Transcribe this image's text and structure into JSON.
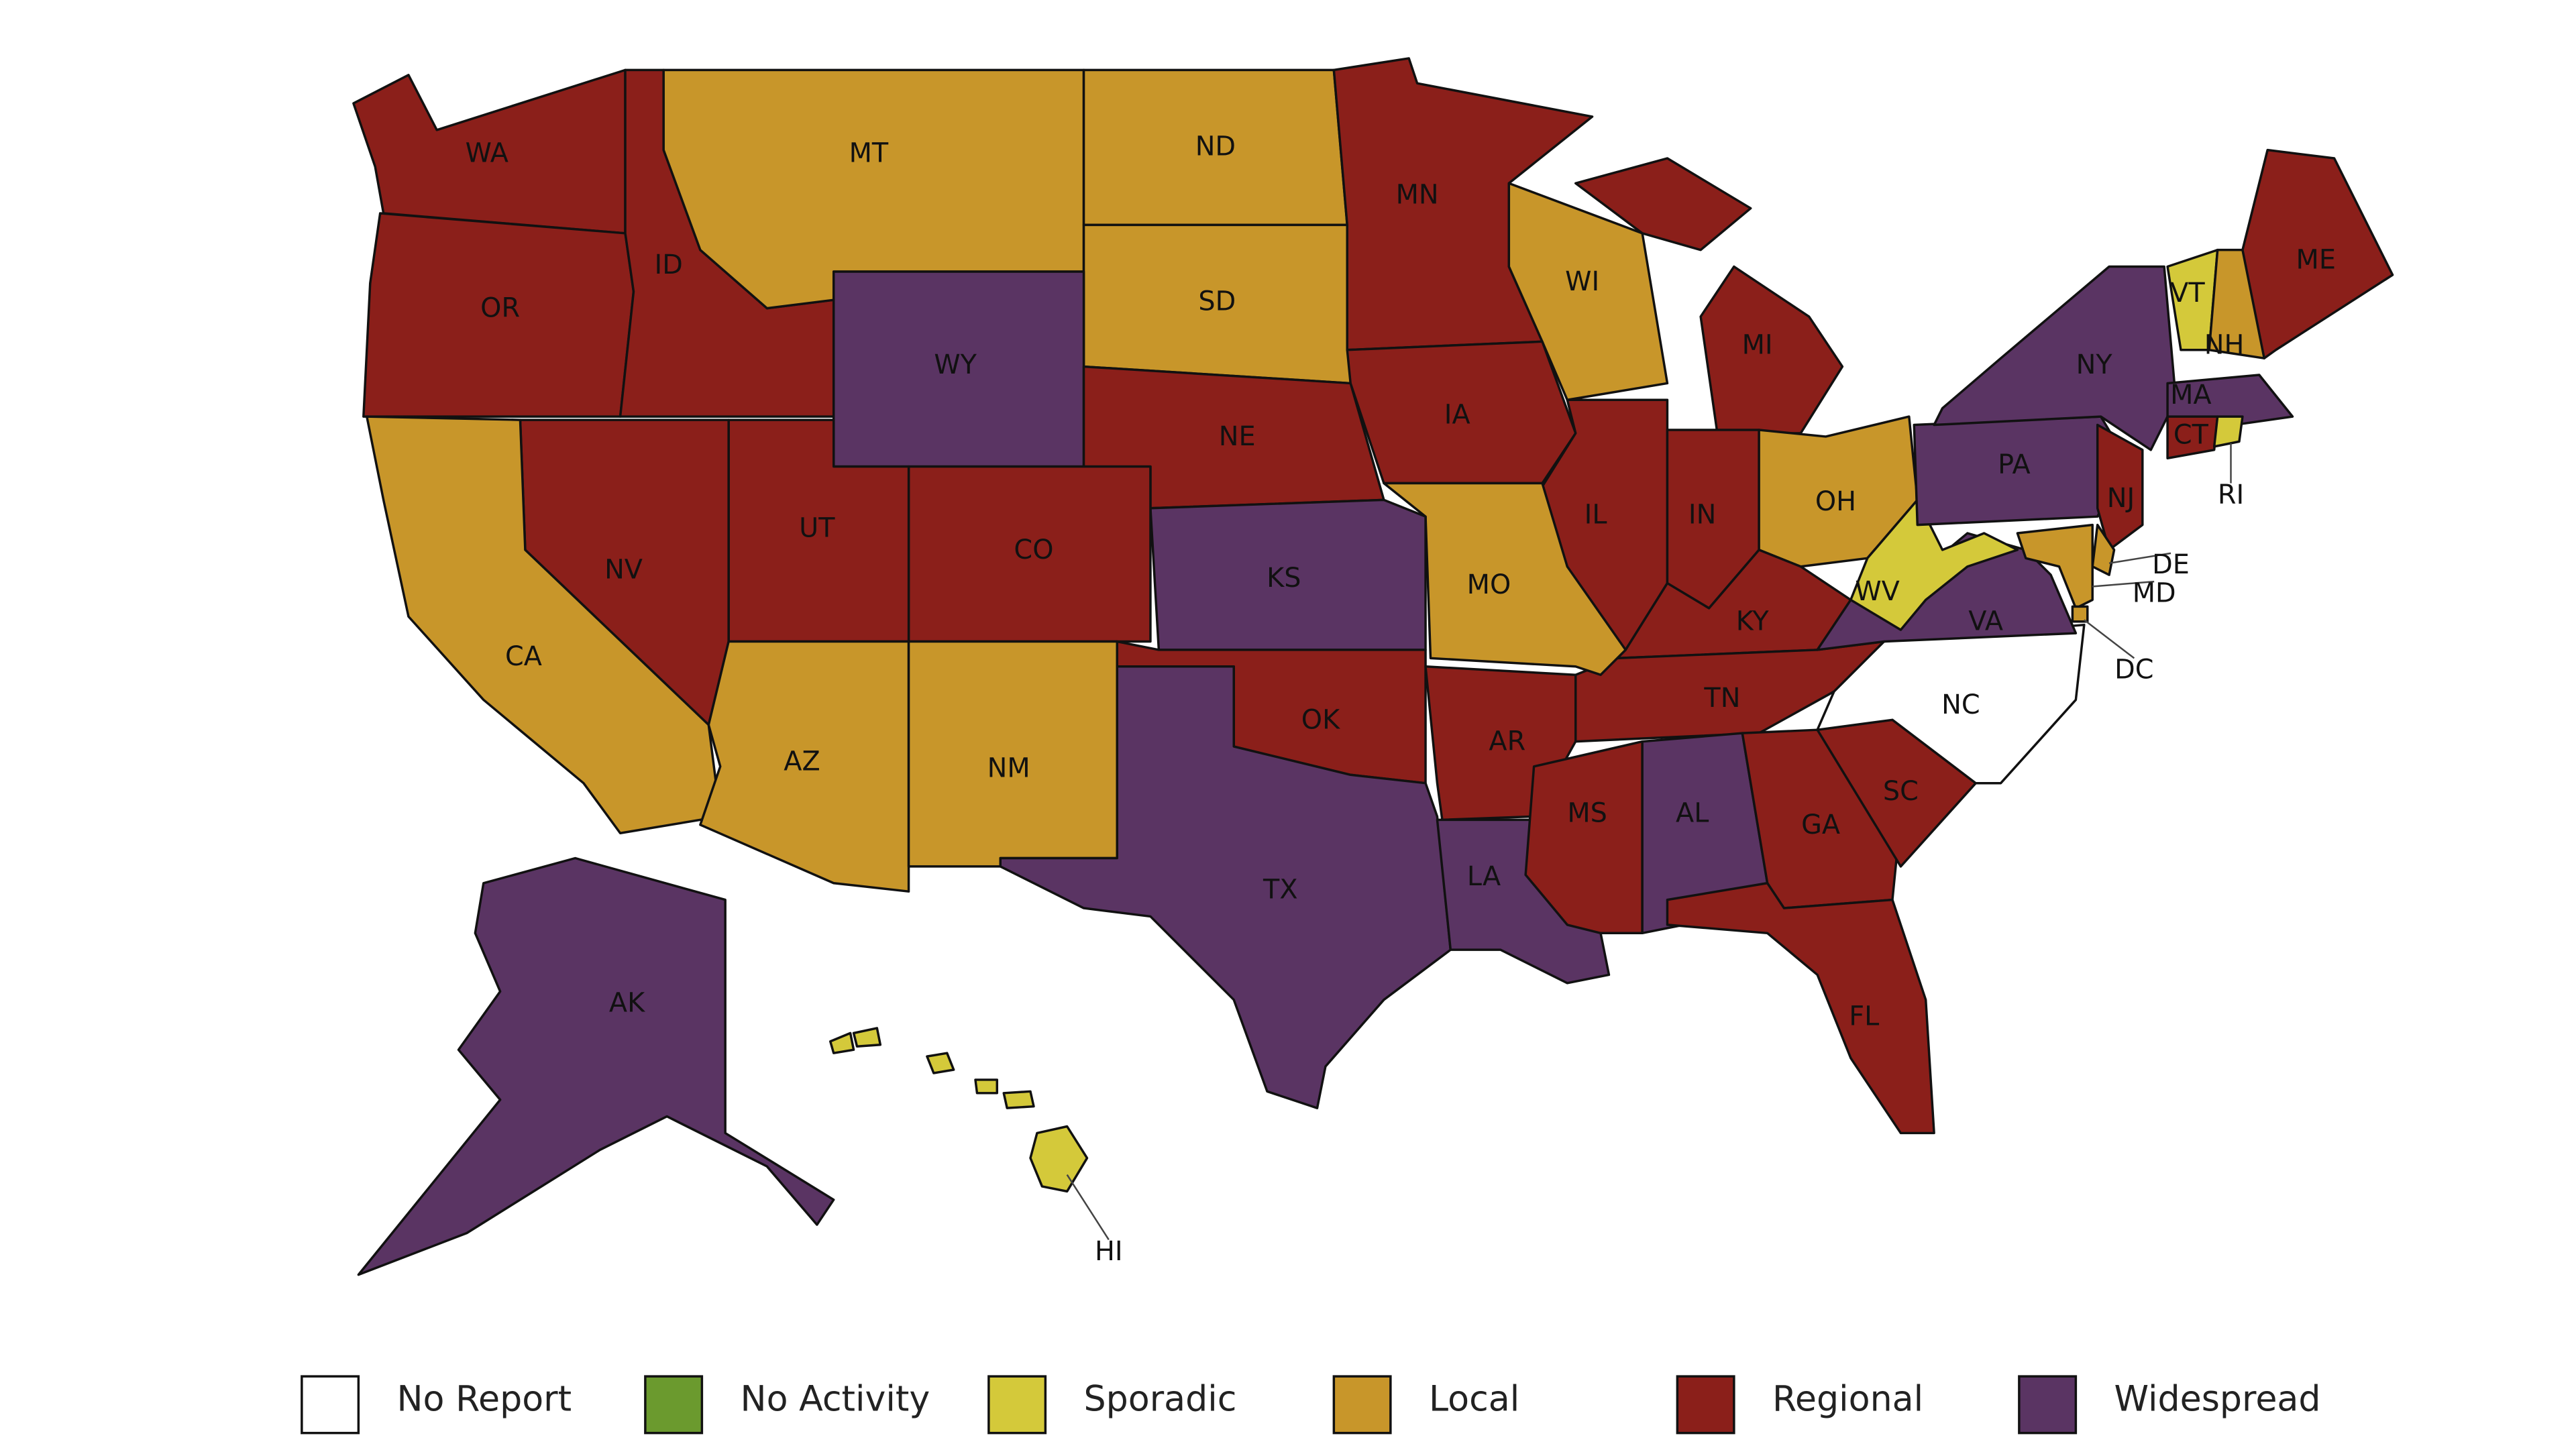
{
  "legend": [
    {
      "label": "No Report",
      "color": "#ffffff",
      "states": [
        "NC"
      ]
    },
    {
      "label": "No Activity",
      "color": "#6b9a2e",
      "states": []
    },
    {
      "label": "Sporadic",
      "color": "#d4c93a",
      "states": [
        "VT",
        "WV",
        "RI",
        "HI"
      ]
    },
    {
      "label": "Local",
      "color": "#c8962a",
      "states": [
        "MT",
        "ND",
        "SD",
        "WI",
        "CA",
        "AZ",
        "NM",
        "MO",
        "OH",
        "NH",
        "MD",
        "DE",
        "DC"
      ]
    },
    {
      "label": "Regional",
      "color": "#8b1f1a",
      "states": [
        "WA",
        "OR",
        "ID",
        "NV",
        "UT",
        "CO",
        "NE",
        "MN",
        "IA",
        "IL",
        "IN",
        "MI",
        "KY",
        "TN",
        "OK",
        "AR",
        "MS",
        "GA",
        "SC",
        "FL",
        "ME",
        "CT",
        "NJ"
      ]
    },
    {
      "label": "Widespread",
      "color": "#5a3463",
      "states": [
        "WY",
        "KS",
        "TX",
        "LA",
        "AL",
        "NY",
        "PA",
        "VA",
        "MA",
        "AK"
      ]
    }
  ]
}
